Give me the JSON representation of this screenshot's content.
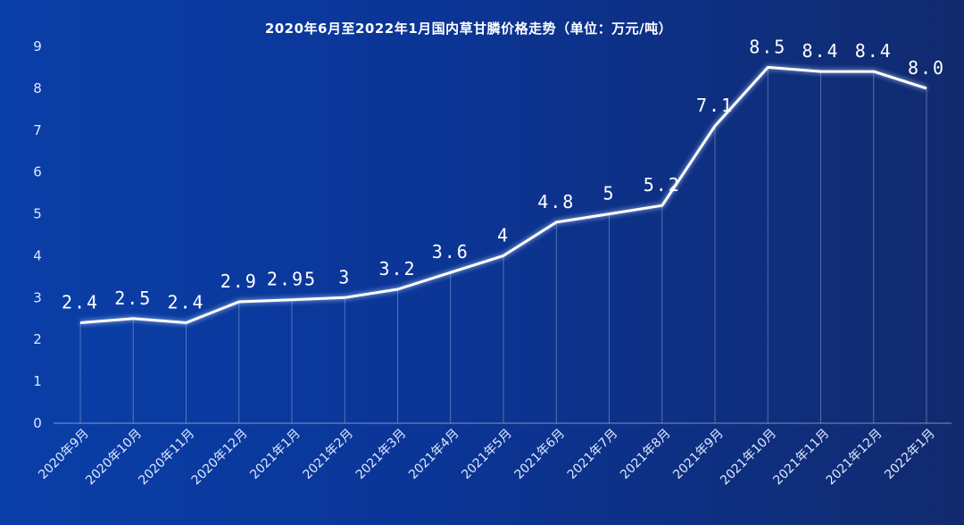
{
  "chart_data": {
    "type": "line",
    "title": "2020年6月至2022年1月国内草甘膦价格走势（单位：万元/吨）",
    "xlabel": "",
    "ylabel": "",
    "ylim": [
      0,
      9
    ],
    "yticks": [
      "0",
      "1",
      "2",
      "3",
      "4",
      "5",
      "6",
      "7",
      "8",
      "9"
    ],
    "grid": false,
    "categories": [
      "2020年9月",
      "2020年10月",
      "2020年11月",
      "2020年12月",
      "2021年1月",
      "2021年2月",
      "2021年3月",
      "2021年4月",
      "2021年5月",
      "2021年6月",
      "2021年7月",
      "2021年8月",
      "2021年9月",
      "2021年10月",
      "2021年11月",
      "2021年12月",
      "2022年1月"
    ],
    "values": [
      2.4,
      2.5,
      2.4,
      2.9,
      2.95,
      3,
      3.2,
      3.6,
      4,
      4.8,
      5,
      5.2,
      7.1,
      8.5,
      8.4,
      8.4,
      8.0
    ],
    "data_labels": [
      "2.4",
      "2.5",
      "2.4",
      "2.9",
      "2.95",
      "3",
      "3.2",
      "3.6",
      "4",
      "4.8",
      "5",
      "5.2",
      "7.1",
      "8.5",
      "8.4",
      "8.4",
      "8.0"
    ],
    "line_color": "#ffffff"
  }
}
